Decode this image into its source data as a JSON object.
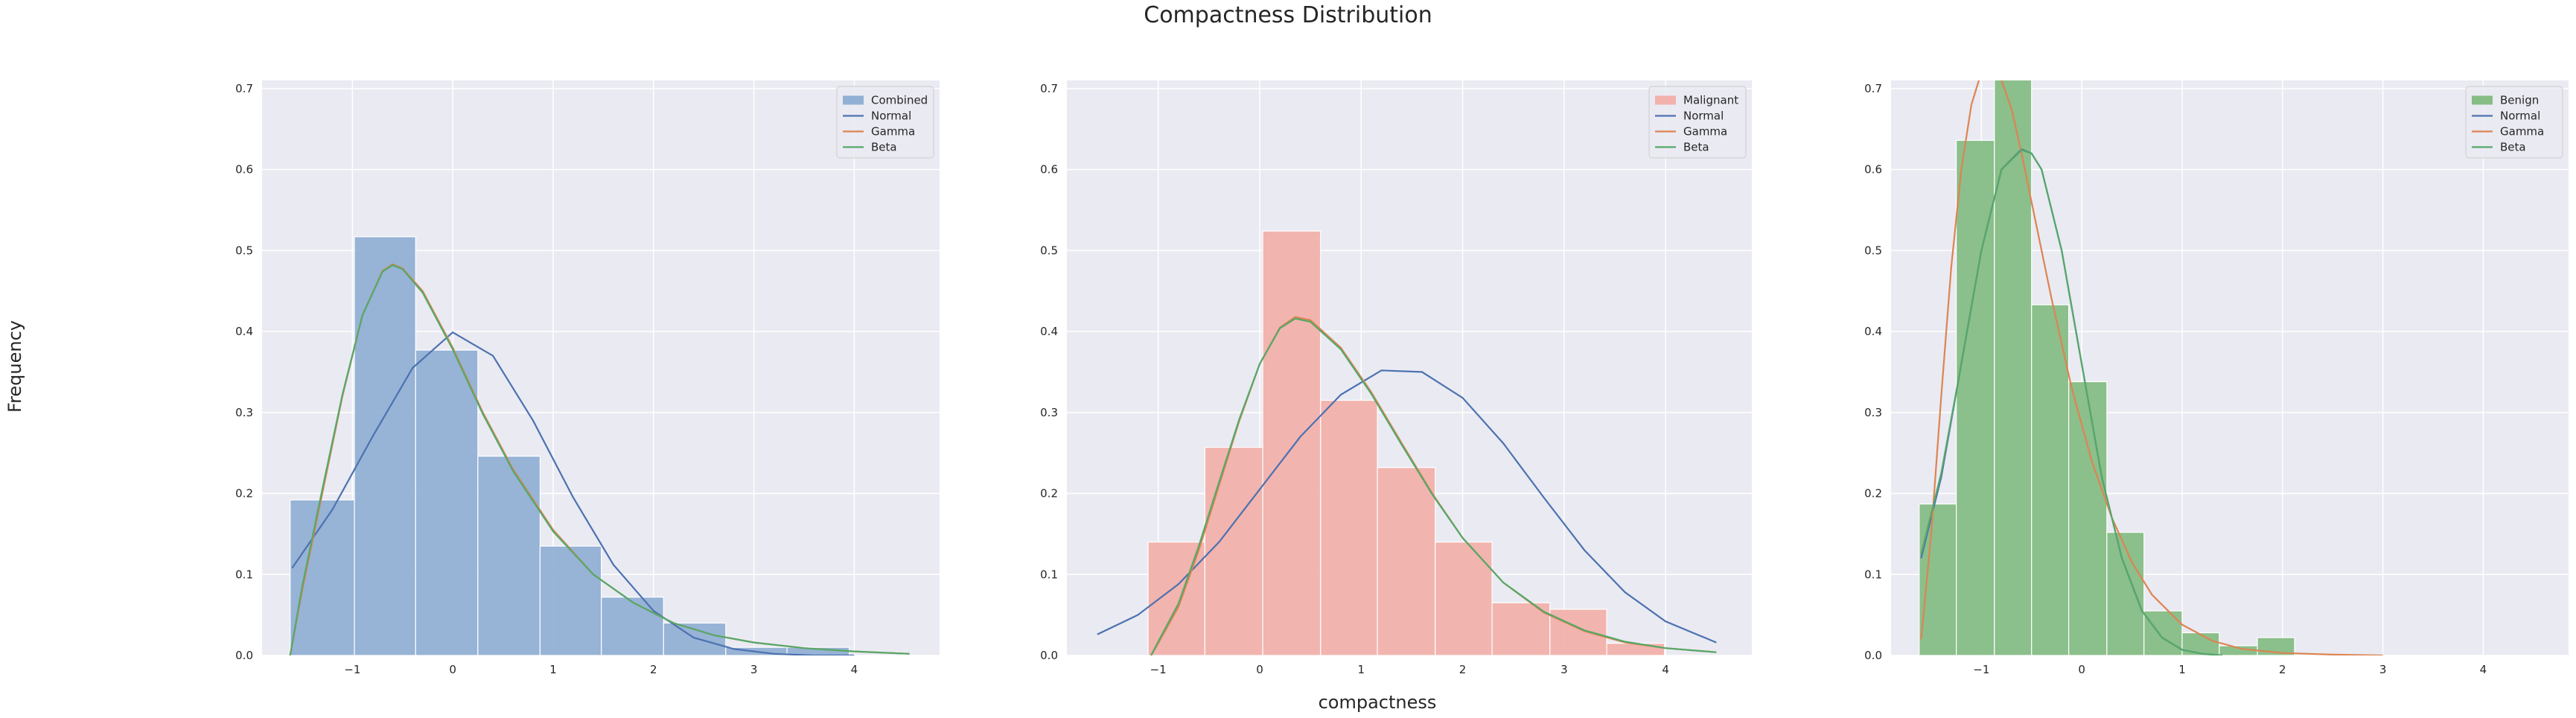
{
  "figure": {
    "title": "Compactness Distribution",
    "xlabel": "compactness",
    "ylabel": "Frequency"
  },
  "chart_data": [
    {
      "type": "bar",
      "ylim": [
        0,
        0.71
      ],
      "xlim": [
        -1.9,
        4.85
      ],
      "yticks": [
        0.0,
        0.1,
        0.2,
        0.3,
        0.4,
        0.5,
        0.6,
        0.7
      ],
      "xticks": [
        -1,
        0,
        1,
        2,
        3,
        4
      ],
      "ytick_labels": [
        "0.0",
        "0.1",
        "0.2",
        "0.3",
        "0.4",
        "0.5",
        "0.6",
        "0.7"
      ],
      "xtick_labels": [
        "−1",
        "0",
        "1",
        "2",
        "3",
        "4"
      ],
      "grid": true,
      "legend_position": "top-right",
      "histogram": {
        "name": "Combined",
        "color": "#92b0d4",
        "bin_edges": [
          -1.62,
          -0.98,
          -0.37,
          0.25,
          0.87,
          1.48,
          2.1,
          2.72,
          3.33,
          3.95
        ],
        "values": [
          0.192,
          0.517,
          0.377,
          0.246,
          0.135,
          0.072,
          0.04,
          0.01,
          0.01
        ]
      },
      "series": [
        {
          "name": "Normal",
          "color": "#4c72b0",
          "x": [
            -1.6,
            -1.2,
            -0.8,
            -0.4,
            0.0,
            0.4,
            0.8,
            1.2,
            1.6,
            2.0,
            2.4,
            2.8,
            3.2,
            3.6,
            4.0
          ],
          "y": [
            0.108,
            0.18,
            0.27,
            0.355,
            0.399,
            0.37,
            0.29,
            0.195,
            0.112,
            0.055,
            0.022,
            0.008,
            0.002,
            0.0,
            0.0
          ]
        },
        {
          "name": "Gamma",
          "color": "#dd8452",
          "x": [
            -1.62,
            -1.5,
            -1.3,
            -1.1,
            -0.9,
            -0.7,
            -0.6,
            -0.5,
            -0.3,
            0.0,
            0.3,
            0.6,
            1.0,
            1.4,
            1.8,
            2.2,
            2.6,
            3.0,
            3.5,
            4.0,
            4.55
          ],
          "y": [
            0.0,
            0.08,
            0.2,
            0.32,
            0.42,
            0.475,
            0.483,
            0.478,
            0.45,
            0.38,
            0.3,
            0.23,
            0.155,
            0.1,
            0.065,
            0.04,
            0.025,
            0.016,
            0.009,
            0.005,
            0.002
          ]
        },
        {
          "name": "Beta",
          "color": "#55a868",
          "x": [
            -1.62,
            -1.5,
            -1.3,
            -1.1,
            -0.9,
            -0.7,
            -0.6,
            -0.5,
            -0.3,
            0.0,
            0.3,
            0.6,
            1.0,
            1.4,
            1.8,
            2.2,
            2.6,
            3.0,
            3.5,
            4.0,
            4.55
          ],
          "y": [
            0.0,
            0.085,
            0.205,
            0.322,
            0.42,
            0.474,
            0.482,
            0.477,
            0.448,
            0.378,
            0.298,
            0.228,
            0.153,
            0.1,
            0.065,
            0.04,
            0.025,
            0.016,
            0.009,
            0.005,
            0.002
          ]
        }
      ]
    },
    {
      "type": "bar",
      "ylim": [
        0,
        0.71
      ],
      "xlim": [
        -1.9,
        4.85
      ],
      "yticks": [
        0.0,
        0.1,
        0.2,
        0.3,
        0.4,
        0.5,
        0.6,
        0.7
      ],
      "xticks": [
        -1,
        0,
        1,
        2,
        3,
        4
      ],
      "ytick_labels": [
        "0.0",
        "0.1",
        "0.2",
        "0.3",
        "0.4",
        "0.5",
        "0.6",
        "0.7"
      ],
      "xtick_labels": [
        "−1",
        "0",
        "1",
        "2",
        "3",
        "4"
      ],
      "grid": true,
      "legend_position": "top-right",
      "histogram": {
        "name": "Malignant",
        "color": "#f2b1ab",
        "bin_edges": [
          -1.1,
          -0.54,
          0.03,
          0.6,
          1.16,
          1.73,
          2.29,
          2.86,
          3.42,
          3.99
        ],
        "values": [
          0.14,
          0.257,
          0.524,
          0.315,
          0.232,
          0.14,
          0.065,
          0.057,
          0.015
        ]
      },
      "series": [
        {
          "name": "Normal",
          "color": "#4c72b0",
          "x": [
            -1.6,
            -1.2,
            -0.8,
            -0.4,
            0.0,
            0.4,
            0.8,
            1.2,
            1.6,
            2.0,
            2.4,
            2.8,
            3.2,
            3.6,
            4.0,
            4.5
          ],
          "y": [
            0.026,
            0.05,
            0.088,
            0.14,
            0.205,
            0.27,
            0.322,
            0.352,
            0.35,
            0.318,
            0.262,
            0.195,
            0.13,
            0.078,
            0.042,
            0.016
          ]
        },
        {
          "name": "Gamma",
          "color": "#dd8452",
          "x": [
            -1.07,
            -1.0,
            -0.8,
            -0.6,
            -0.4,
            -0.2,
            0.0,
            0.2,
            0.35,
            0.5,
            0.8,
            1.1,
            1.4,
            1.7,
            2.0,
            2.4,
            2.8,
            3.2,
            3.6,
            4.0,
            4.5
          ],
          "y": [
            0.0,
            0.015,
            0.06,
            0.13,
            0.21,
            0.29,
            0.36,
            0.405,
            0.418,
            0.414,
            0.38,
            0.325,
            0.262,
            0.2,
            0.145,
            0.09,
            0.053,
            0.03,
            0.016,
            0.009,
            0.004
          ]
        },
        {
          "name": "Beta",
          "color": "#55a868",
          "x": [
            -1.07,
            -1.0,
            -0.8,
            -0.6,
            -0.4,
            -0.2,
            0.0,
            0.2,
            0.35,
            0.5,
            0.8,
            1.1,
            1.4,
            1.7,
            2.0,
            2.4,
            2.8,
            3.2,
            3.6,
            4.0,
            4.5
          ],
          "y": [
            0.0,
            0.017,
            0.064,
            0.135,
            0.214,
            0.292,
            0.36,
            0.404,
            0.416,
            0.412,
            0.378,
            0.323,
            0.26,
            0.199,
            0.145,
            0.09,
            0.054,
            0.031,
            0.017,
            0.009,
            0.004
          ]
        }
      ]
    },
    {
      "type": "bar",
      "ylim": [
        0,
        0.71
      ],
      "xlim": [
        -1.9,
        4.85
      ],
      "yticks": [
        0.0,
        0.1,
        0.2,
        0.3,
        0.4,
        0.5,
        0.6,
        0.7
      ],
      "xticks": [
        -1,
        0,
        1,
        2,
        3,
        4
      ],
      "ytick_labels": [
        "0.0",
        "0.1",
        "0.2",
        "0.3",
        "0.4",
        "0.5",
        "0.6",
        "0.7"
      ],
      "xtick_labels": [
        "−1",
        "0",
        "1",
        "2",
        "3",
        "4"
      ],
      "grid": true,
      "legend_position": "top-right",
      "histogram": {
        "name": "Benign",
        "color": "#86bd85",
        "bin_edges": [
          -1.62,
          -1.25,
          -0.87,
          -0.5,
          -0.13,
          0.25,
          0.62,
          1.0,
          1.37,
          1.75,
          2.12
        ],
        "values": [
          0.187,
          0.636,
          0.712,
          0.433,
          0.338,
          0.152,
          0.055,
          0.028,
          0.012,
          0.022
        ]
      },
      "series": [
        {
          "name": "Normal",
          "color": "#4c72b0",
          "x": [
            -1.6,
            -1.4,
            -1.2,
            -1.0,
            -0.8,
            -0.6,
            -0.5,
            -0.4,
            -0.2,
            0.0,
            0.2,
            0.4,
            0.6,
            0.8,
            1.0,
            1.2,
            1.4
          ],
          "y": [
            0.12,
            0.22,
            0.36,
            0.5,
            0.6,
            0.625,
            0.62,
            0.6,
            0.5,
            0.36,
            0.22,
            0.12,
            0.055,
            0.022,
            0.007,
            0.002,
            0.0
          ]
        },
        {
          "name": "Gamma",
          "color": "#dd8452",
          "x": [
            -1.6,
            -1.5,
            -1.4,
            -1.3,
            -1.2,
            -1.1,
            -1.0,
            -0.9,
            -0.8,
            -0.7,
            -0.6,
            -0.5,
            -0.3,
            -0.1,
            0.1,
            0.3,
            0.5,
            0.7,
            1.0,
            1.3,
            1.6,
            2.0,
            2.5,
            3.0
          ],
          "y": [
            0.02,
            0.15,
            0.32,
            0.48,
            0.6,
            0.68,
            0.72,
            0.73,
            0.71,
            0.675,
            0.62,
            0.56,
            0.44,
            0.33,
            0.24,
            0.17,
            0.115,
            0.075,
            0.038,
            0.018,
            0.008,
            0.003,
            0.001,
            0.0
          ]
        },
        {
          "name": "Beta",
          "color": "#55a868",
          "x": [
            -1.6,
            -1.4,
            -1.2,
            -1.0,
            -0.8,
            -0.6,
            -0.5,
            -0.4,
            -0.2,
            0.0,
            0.2,
            0.4,
            0.6,
            0.8,
            1.0,
            1.2,
            1.4
          ],
          "y": [
            0.125,
            0.225,
            0.36,
            0.5,
            0.6,
            0.624,
            0.62,
            0.6,
            0.5,
            0.36,
            0.22,
            0.12,
            0.055,
            0.022,
            0.007,
            0.002,
            0.0
          ]
        }
      ]
    }
  ]
}
